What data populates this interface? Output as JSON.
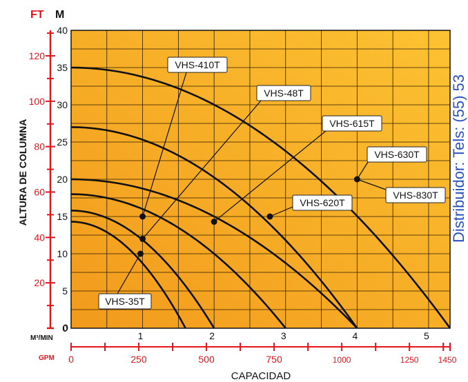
{
  "chart_data": {
    "type": "line",
    "xlabel": "CAPACIDAD",
    "ylabel": "ALTURA DE COLUMNA",
    "unit_m": "M",
    "unit_ft": "FT",
    "unit_m3": "M³/MIN",
    "unit_gpm": "GPM",
    "xlim": [
      0,
      5.3
    ],
    "ylim": [
      0,
      40
    ],
    "x_ticks": [
      "1",
      "2",
      "3",
      "4",
      "5"
    ],
    "y_ticks": [
      "0",
      "5",
      "10",
      "15",
      "20",
      "25",
      "30",
      "35",
      "40"
    ],
    "ft_ticks": [
      {
        "value": 20,
        "label": "20"
      },
      {
        "value": 40,
        "label": "40"
      },
      {
        "value": 60,
        "label": "60"
      },
      {
        "value": 80,
        "label": "80"
      },
      {
        "value": 100,
        "label": "100"
      },
      {
        "value": 120,
        "label": "120"
      }
    ],
    "gpm_ticks": [
      {
        "value": 0,
        "label": "0"
      },
      {
        "value": 250,
        "label": "250"
      },
      {
        "value": 500,
        "label": "500"
      },
      {
        "value": 750,
        "label": "750"
      },
      {
        "value": 1000,
        "label": "1000"
      },
      {
        "value": 1250,
        "label": "1250"
      },
      {
        "value": 1450,
        "label": "1450"
      }
    ],
    "series": [
      {
        "name": "VHS-35T",
        "shutoff": 14.3,
        "max_flow": 1.6
      },
      {
        "name": "VHS-410T",
        "shutoff": 15.8,
        "max_flow": 2.0
      },
      {
        "name": "VHS-48T",
        "shutoff": 18.0,
        "max_flow": 3.0
      },
      {
        "name": "VHS-615T",
        "shutoff": 20.0,
        "max_flow": 4.0
      },
      {
        "name": "VHS-620T",
        "shutoff": 27.0,
        "max_flow": 4.0
      },
      {
        "name": "VHS-630T / VHS-830T",
        "shutoff": 35.0,
        "max_flow": 5.3
      }
    ],
    "points": [
      {
        "x": 1.0,
        "y": 15.0
      },
      {
        "x": 1.0,
        "y": 12.0
      },
      {
        "x": 0.97,
        "y": 10.0
      },
      {
        "x": 2.0,
        "y": 14.3
      },
      {
        "x": 2.78,
        "y": 15.0
      },
      {
        "x": 4.0,
        "y": 20.0
      }
    ],
    "labels": [
      {
        "text": "VHS-410T",
        "target": 0
      },
      {
        "text": "VHS-48T",
        "target": 1
      },
      {
        "text": "VHS-615T",
        "target": 3
      },
      {
        "text": "VHS-630T",
        "target": 5
      },
      {
        "text": "VHS-830T",
        "target": 5
      },
      {
        "text": "VHS-620T",
        "target": 4
      },
      {
        "text": "VHS-35T",
        "target": 2
      }
    ],
    "grid": true,
    "background": [
      "#f29a1c",
      "#fcc232"
    ],
    "axis_color": "#e3141b",
    "curve_color": "#111111"
  },
  "side_text": "Distribuidor: Tels: (55) 53"
}
